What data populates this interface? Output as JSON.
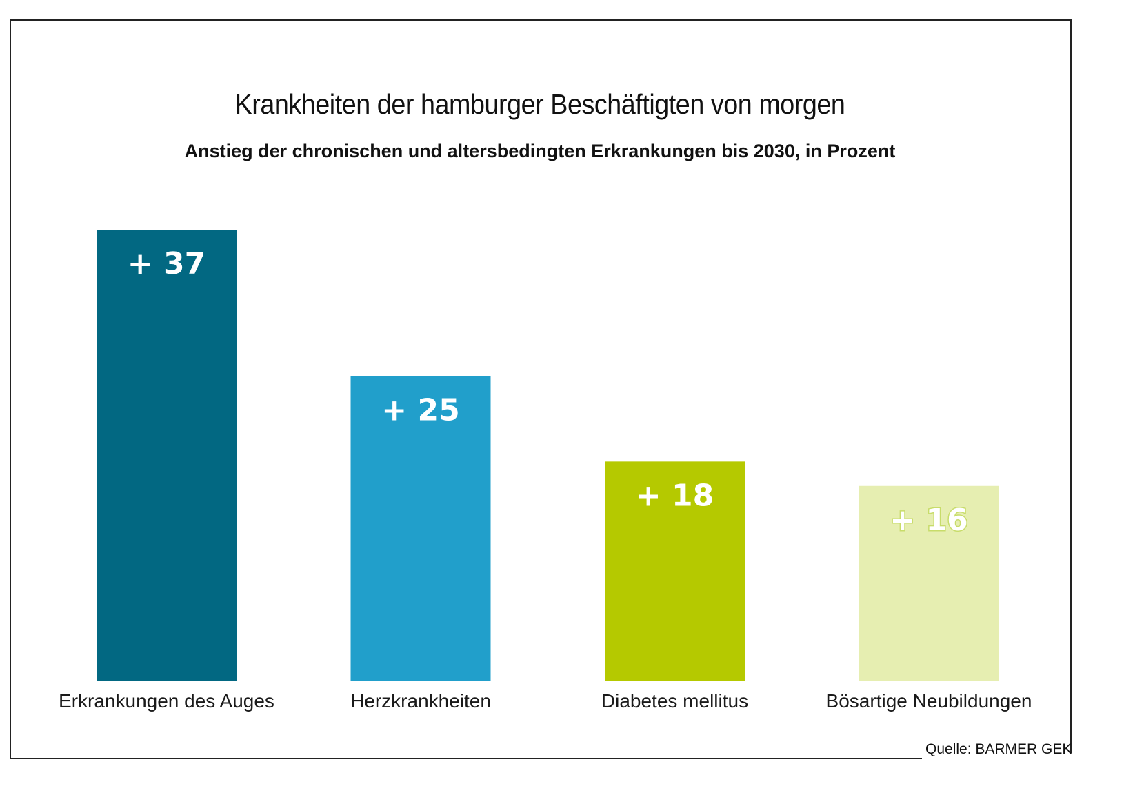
{
  "chart_data": {
    "type": "bar",
    "title": "Krankheiten der hamburger Beschäftigten von morgen",
    "subtitle": "Anstieg der chronischen und altersbedingten Erkrankungen bis 2030, in Prozent",
    "categories": [
      "Erkrankungen des Auges",
      "Herzkrankheiten",
      "Diabetes mellitus",
      "Bösartige Neubildungen"
    ],
    "values": [
      37,
      25,
      18,
      16
    ],
    "value_labels": [
      "+ 37",
      "+ 25",
      "+ 18",
      "+ 16"
    ],
    "colors": [
      "#026882",
      "#219fcb",
      "#b5c900",
      "#e6eeb1"
    ],
    "xlabel": "",
    "ylabel": "",
    "ylim": [
      0,
      37
    ],
    "grid": false,
    "legend": "none",
    "source": "Quelle: BARMER GEK"
  }
}
